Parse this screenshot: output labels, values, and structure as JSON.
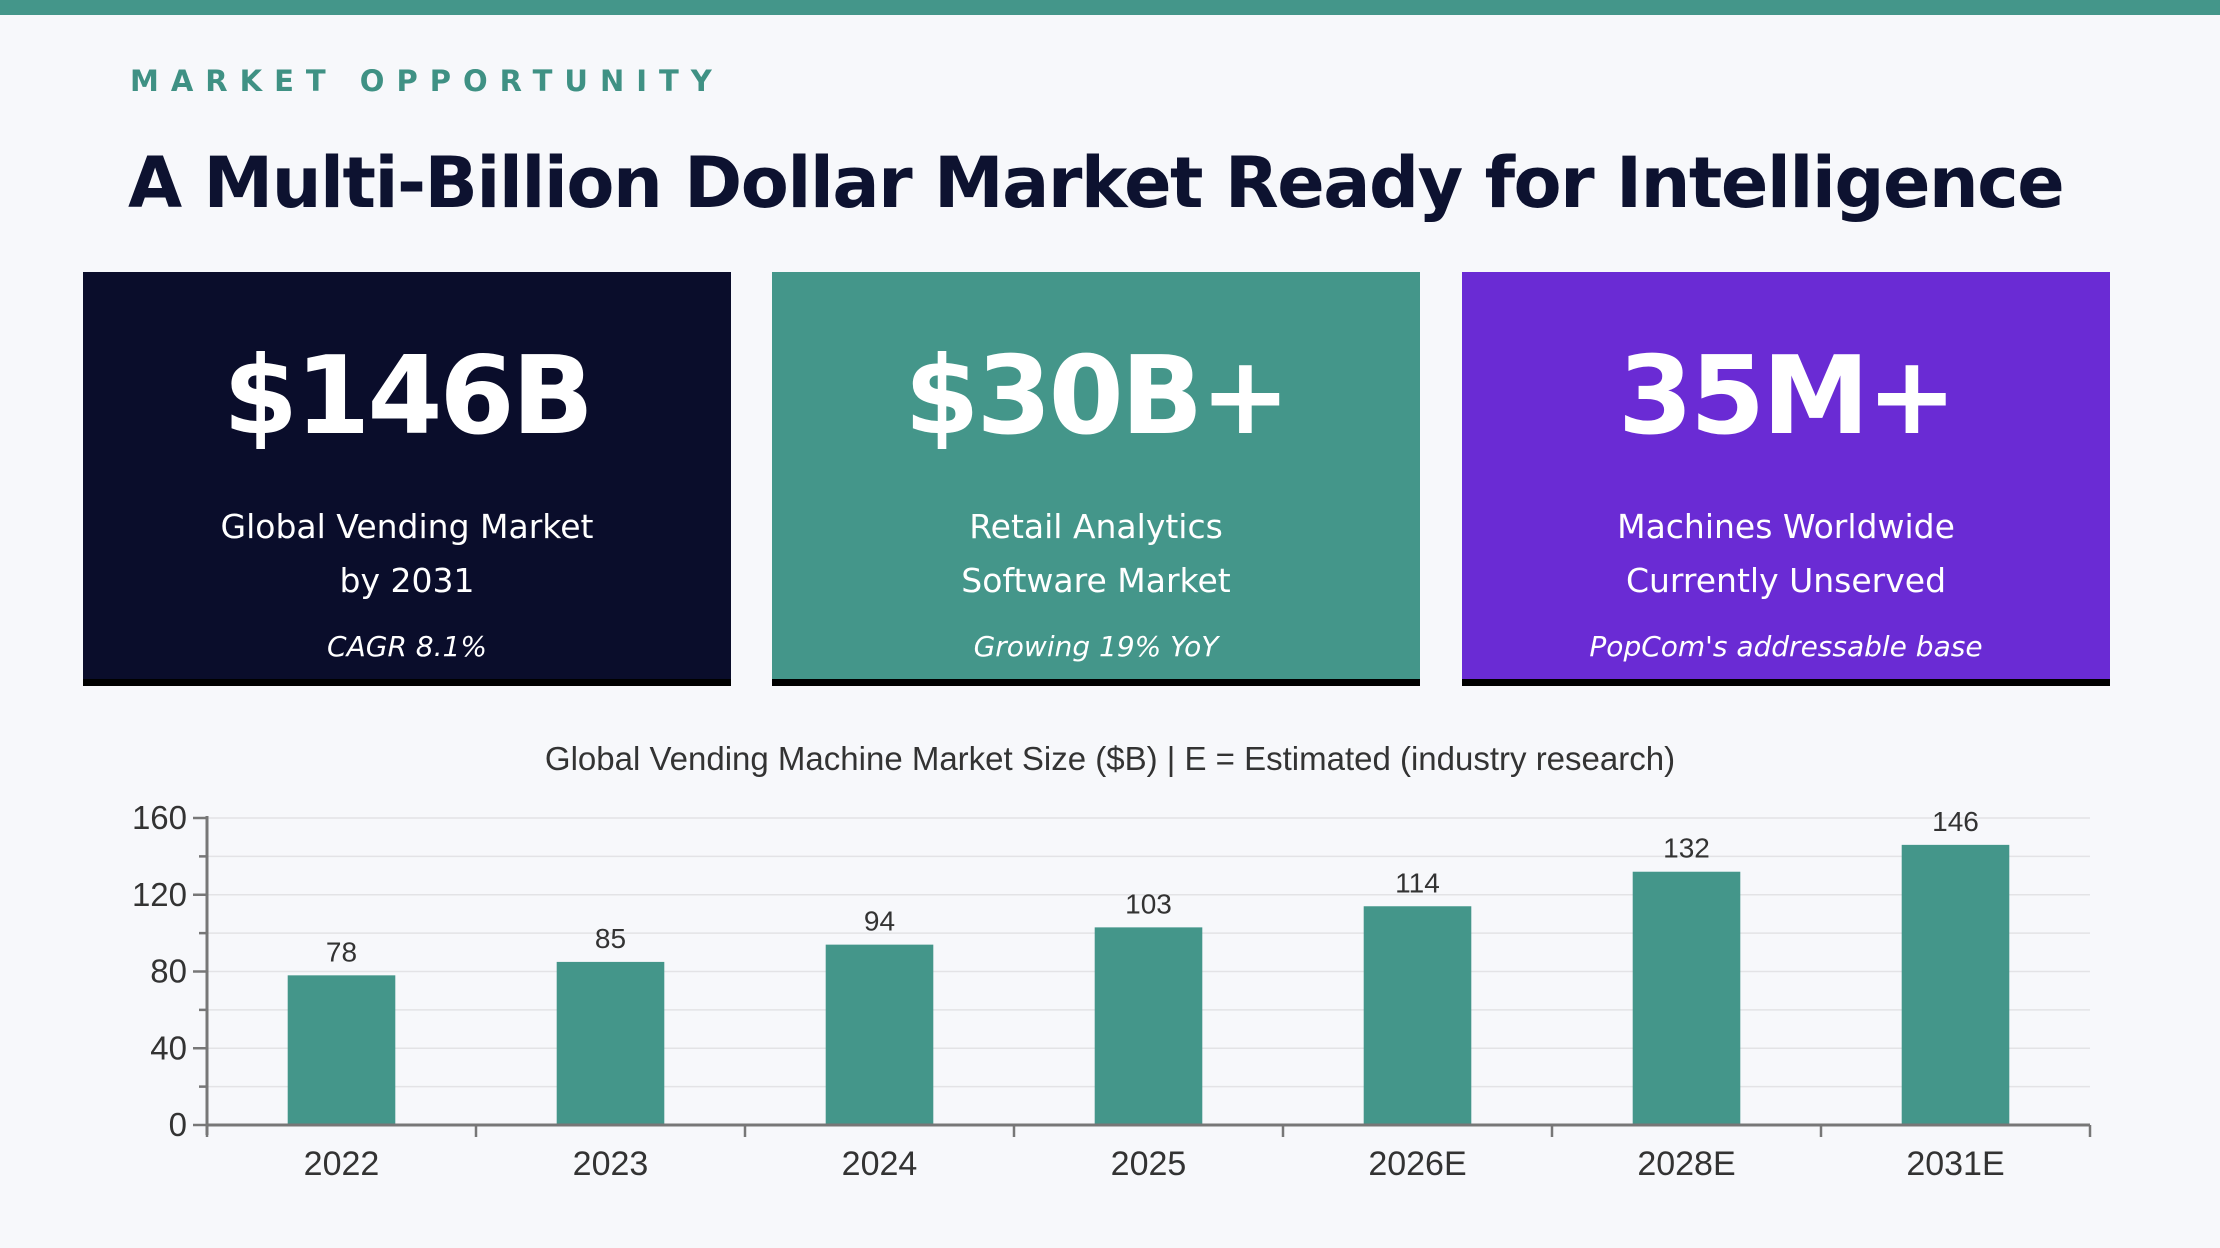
{
  "header": {
    "eyebrow": "MARKET OPPORTUNITY",
    "title": "A Multi-Billion Dollar Market Ready for Intelligence"
  },
  "stat_cards": [
    {
      "value": "$146B",
      "label_line1": "Global Vending Market",
      "label_line2": "by 2031",
      "note": "CAGR 8.1%",
      "color": "#0a0d2b"
    },
    {
      "value": "$30B+",
      "label_line1": "Retail Analytics",
      "label_line2": "Software Market",
      "note": "Growing 19% YoY",
      "color": "#44968a"
    },
    {
      "value": "35M+",
      "label_line1": "Machines Worldwide",
      "label_line2": "Currently Unserved",
      "note": "PopCom's addressable base",
      "color": "#6a2bd4"
    }
  ],
  "colors": {
    "accent": "#44968a",
    "text_dark": "#0d1230"
  },
  "chart_data": {
    "type": "bar",
    "title": "Global Vending Machine Market Size ($B)  |  E = Estimated (industry research)",
    "categories": [
      "2022",
      "2023",
      "2024",
      "2025",
      "2026E",
      "2028E",
      "2031E"
    ],
    "values": [
      78,
      85,
      94,
      103,
      114,
      132,
      146
    ],
    "ylim": [
      0,
      160
    ],
    "yticks": [
      0,
      40,
      80,
      120,
      160
    ],
    "grid": true,
    "bar_color": "#44968a"
  }
}
